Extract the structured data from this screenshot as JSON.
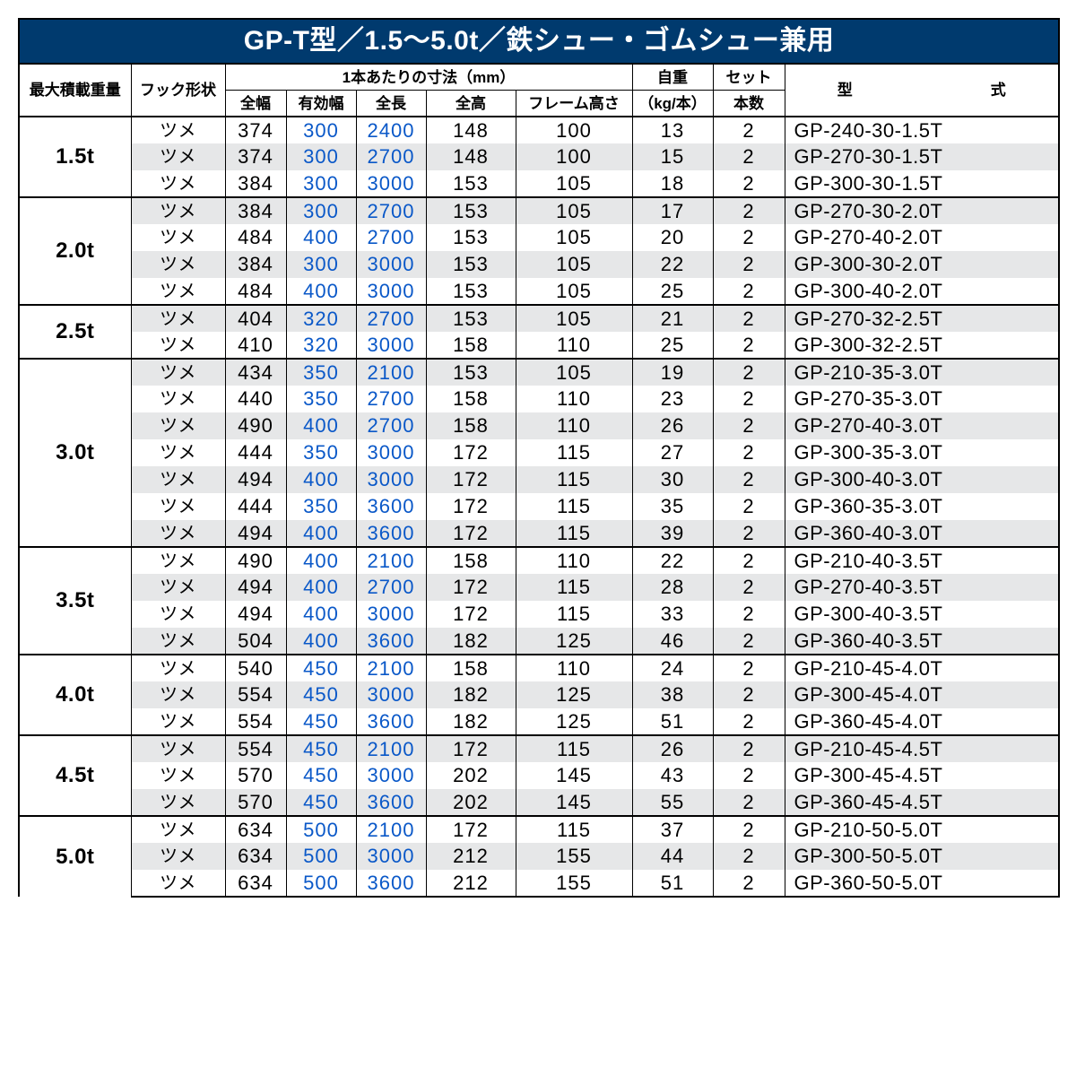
{
  "title": "GP-T型／1.5〜5.0t／鉄シュー・ゴムシュー兼用",
  "headers": {
    "load": "最大積載重量",
    "hook": "フック形状",
    "dims": "1本あたりの寸法（mm）",
    "full_w": "全幅",
    "eff_w": "有効幅",
    "full_l": "全長",
    "full_h": "全高",
    "frame_h": "フレーム高さ",
    "weight": "自重",
    "weight_unit": "（kg/本）",
    "set": "セット",
    "set_unit": "本数",
    "model": "型　　式"
  },
  "groups": [
    {
      "load": "1.5t",
      "alt_start": false,
      "rows": [
        {
          "hook": "ツメ",
          "fw": "374",
          "ew": "300",
          "fl": "2400",
          "fh": "148",
          "frh": "100",
          "wt": "13",
          "set": "2",
          "model": "GP-240-30-1.5T"
        },
        {
          "hook": "ツメ",
          "fw": "374",
          "ew": "300",
          "fl": "2700",
          "fh": "148",
          "frh": "100",
          "wt": "15",
          "set": "2",
          "model": "GP-270-30-1.5T"
        },
        {
          "hook": "ツメ",
          "fw": "384",
          "ew": "300",
          "fl": "3000",
          "fh": "153",
          "frh": "105",
          "wt": "18",
          "set": "2",
          "model": "GP-300-30-1.5T"
        }
      ]
    },
    {
      "load": "2.0t",
      "alt_start": true,
      "rows": [
        {
          "hook": "ツメ",
          "fw": "384",
          "ew": "300",
          "fl": "2700",
          "fh": "153",
          "frh": "105",
          "wt": "17",
          "set": "2",
          "model": "GP-270-30-2.0T"
        },
        {
          "hook": "ツメ",
          "fw": "484",
          "ew": "400",
          "fl": "2700",
          "fh": "153",
          "frh": "105",
          "wt": "20",
          "set": "2",
          "model": "GP-270-40-2.0T"
        },
        {
          "hook": "ツメ",
          "fw": "384",
          "ew": "300",
          "fl": "3000",
          "fh": "153",
          "frh": "105",
          "wt": "22",
          "set": "2",
          "model": "GP-300-30-2.0T"
        },
        {
          "hook": "ツメ",
          "fw": "484",
          "ew": "400",
          "fl": "3000",
          "fh": "153",
          "frh": "105",
          "wt": "25",
          "set": "2",
          "model": "GP-300-40-2.0T"
        }
      ]
    },
    {
      "load": "2.5t",
      "alt_start": true,
      "rows": [
        {
          "hook": "ツメ",
          "fw": "404",
          "ew": "320",
          "fl": "2700",
          "fh": "153",
          "frh": "105",
          "wt": "21",
          "set": "2",
          "model": "GP-270-32-2.5T"
        },
        {
          "hook": "ツメ",
          "fw": "410",
          "ew": "320",
          "fl": "3000",
          "fh": "158",
          "frh": "110",
          "wt": "25",
          "set": "2",
          "model": "GP-300-32-2.5T"
        }
      ]
    },
    {
      "load": "3.0t",
      "alt_start": true,
      "rows": [
        {
          "hook": "ツメ",
          "fw": "434",
          "ew": "350",
          "fl": "2100",
          "fh": "153",
          "frh": "105",
          "wt": "19",
          "set": "2",
          "model": "GP-210-35-3.0T"
        },
        {
          "hook": "ツメ",
          "fw": "440",
          "ew": "350",
          "fl": "2700",
          "fh": "158",
          "frh": "110",
          "wt": "23",
          "set": "2",
          "model": "GP-270-35-3.0T"
        },
        {
          "hook": "ツメ",
          "fw": "490",
          "ew": "400",
          "fl": "2700",
          "fh": "158",
          "frh": "110",
          "wt": "26",
          "set": "2",
          "model": "GP-270-40-3.0T"
        },
        {
          "hook": "ツメ",
          "fw": "444",
          "ew": "350",
          "fl": "3000",
          "fh": "172",
          "frh": "115",
          "wt": "27",
          "set": "2",
          "model": "GP-300-35-3.0T"
        },
        {
          "hook": "ツメ",
          "fw": "494",
          "ew": "400",
          "fl": "3000",
          "fh": "172",
          "frh": "115",
          "wt": "30",
          "set": "2",
          "model": "GP-300-40-3.0T"
        },
        {
          "hook": "ツメ",
          "fw": "444",
          "ew": "350",
          "fl": "3600",
          "fh": "172",
          "frh": "115",
          "wt": "35",
          "set": "2",
          "model": "GP-360-35-3.0T"
        },
        {
          "hook": "ツメ",
          "fw": "494",
          "ew": "400",
          "fl": "3600",
          "fh": "172",
          "frh": "115",
          "wt": "39",
          "set": "2",
          "model": "GP-360-40-3.0T"
        }
      ]
    },
    {
      "load": "3.5t",
      "alt_start": false,
      "rows": [
        {
          "hook": "ツメ",
          "fw": "490",
          "ew": "400",
          "fl": "2100",
          "fh": "158",
          "frh": "110",
          "wt": "22",
          "set": "2",
          "model": "GP-210-40-3.5T"
        },
        {
          "hook": "ツメ",
          "fw": "494",
          "ew": "400",
          "fl": "2700",
          "fh": "172",
          "frh": "115",
          "wt": "28",
          "set": "2",
          "model": "GP-270-40-3.5T"
        },
        {
          "hook": "ツメ",
          "fw": "494",
          "ew": "400",
          "fl": "3000",
          "fh": "172",
          "frh": "115",
          "wt": "33",
          "set": "2",
          "model": "GP-300-40-3.5T"
        },
        {
          "hook": "ツメ",
          "fw": "504",
          "ew": "400",
          "fl": "3600",
          "fh": "182",
          "frh": "125",
          "wt": "46",
          "set": "2",
          "model": "GP-360-40-3.5T"
        }
      ]
    },
    {
      "load": "4.0t",
      "alt_start": false,
      "rows": [
        {
          "hook": "ツメ",
          "fw": "540",
          "ew": "450",
          "fl": "2100",
          "fh": "158",
          "frh": "110",
          "wt": "24",
          "set": "2",
          "model": "GP-210-45-4.0T"
        },
        {
          "hook": "ツメ",
          "fw": "554",
          "ew": "450",
          "fl": "3000",
          "fh": "182",
          "frh": "125",
          "wt": "38",
          "set": "2",
          "model": "GP-300-45-4.0T"
        },
        {
          "hook": "ツメ",
          "fw": "554",
          "ew": "450",
          "fl": "3600",
          "fh": "182",
          "frh": "125",
          "wt": "51",
          "set": "2",
          "model": "GP-360-45-4.0T"
        }
      ]
    },
    {
      "load": "4.5t",
      "alt_start": true,
      "rows": [
        {
          "hook": "ツメ",
          "fw": "554",
          "ew": "450",
          "fl": "2100",
          "fh": "172",
          "frh": "115",
          "wt": "26",
          "set": "2",
          "model": "GP-210-45-4.5T"
        },
        {
          "hook": "ツメ",
          "fw": "570",
          "ew": "450",
          "fl": "3000",
          "fh": "202",
          "frh": "145",
          "wt": "43",
          "set": "2",
          "model": "GP-300-45-4.5T"
        },
        {
          "hook": "ツメ",
          "fw": "570",
          "ew": "450",
          "fl": "3600",
          "fh": "202",
          "frh": "145",
          "wt": "55",
          "set": "2",
          "model": "GP-360-45-4.5T"
        }
      ]
    },
    {
      "load": "5.0t",
      "alt_start": false,
      "rows": [
        {
          "hook": "ツメ",
          "fw": "634",
          "ew": "500",
          "fl": "2100",
          "fh": "172",
          "frh": "115",
          "wt": "37",
          "set": "2",
          "model": "GP-210-50-5.0T"
        },
        {
          "hook": "ツメ",
          "fw": "634",
          "ew": "500",
          "fl": "3000",
          "fh": "212",
          "frh": "155",
          "wt": "44",
          "set": "2",
          "model": "GP-300-50-5.0T"
        },
        {
          "hook": "ツメ",
          "fw": "634",
          "ew": "500",
          "fl": "3600",
          "fh": "212",
          "frh": "155",
          "wt": "51",
          "set": "2",
          "model": "GP-360-50-5.0T"
        }
      ]
    }
  ],
  "colors": {
    "header_bg": "#003a6e",
    "blue_text": "#0a58c8",
    "alt_row": "#e6e7e8"
  }
}
